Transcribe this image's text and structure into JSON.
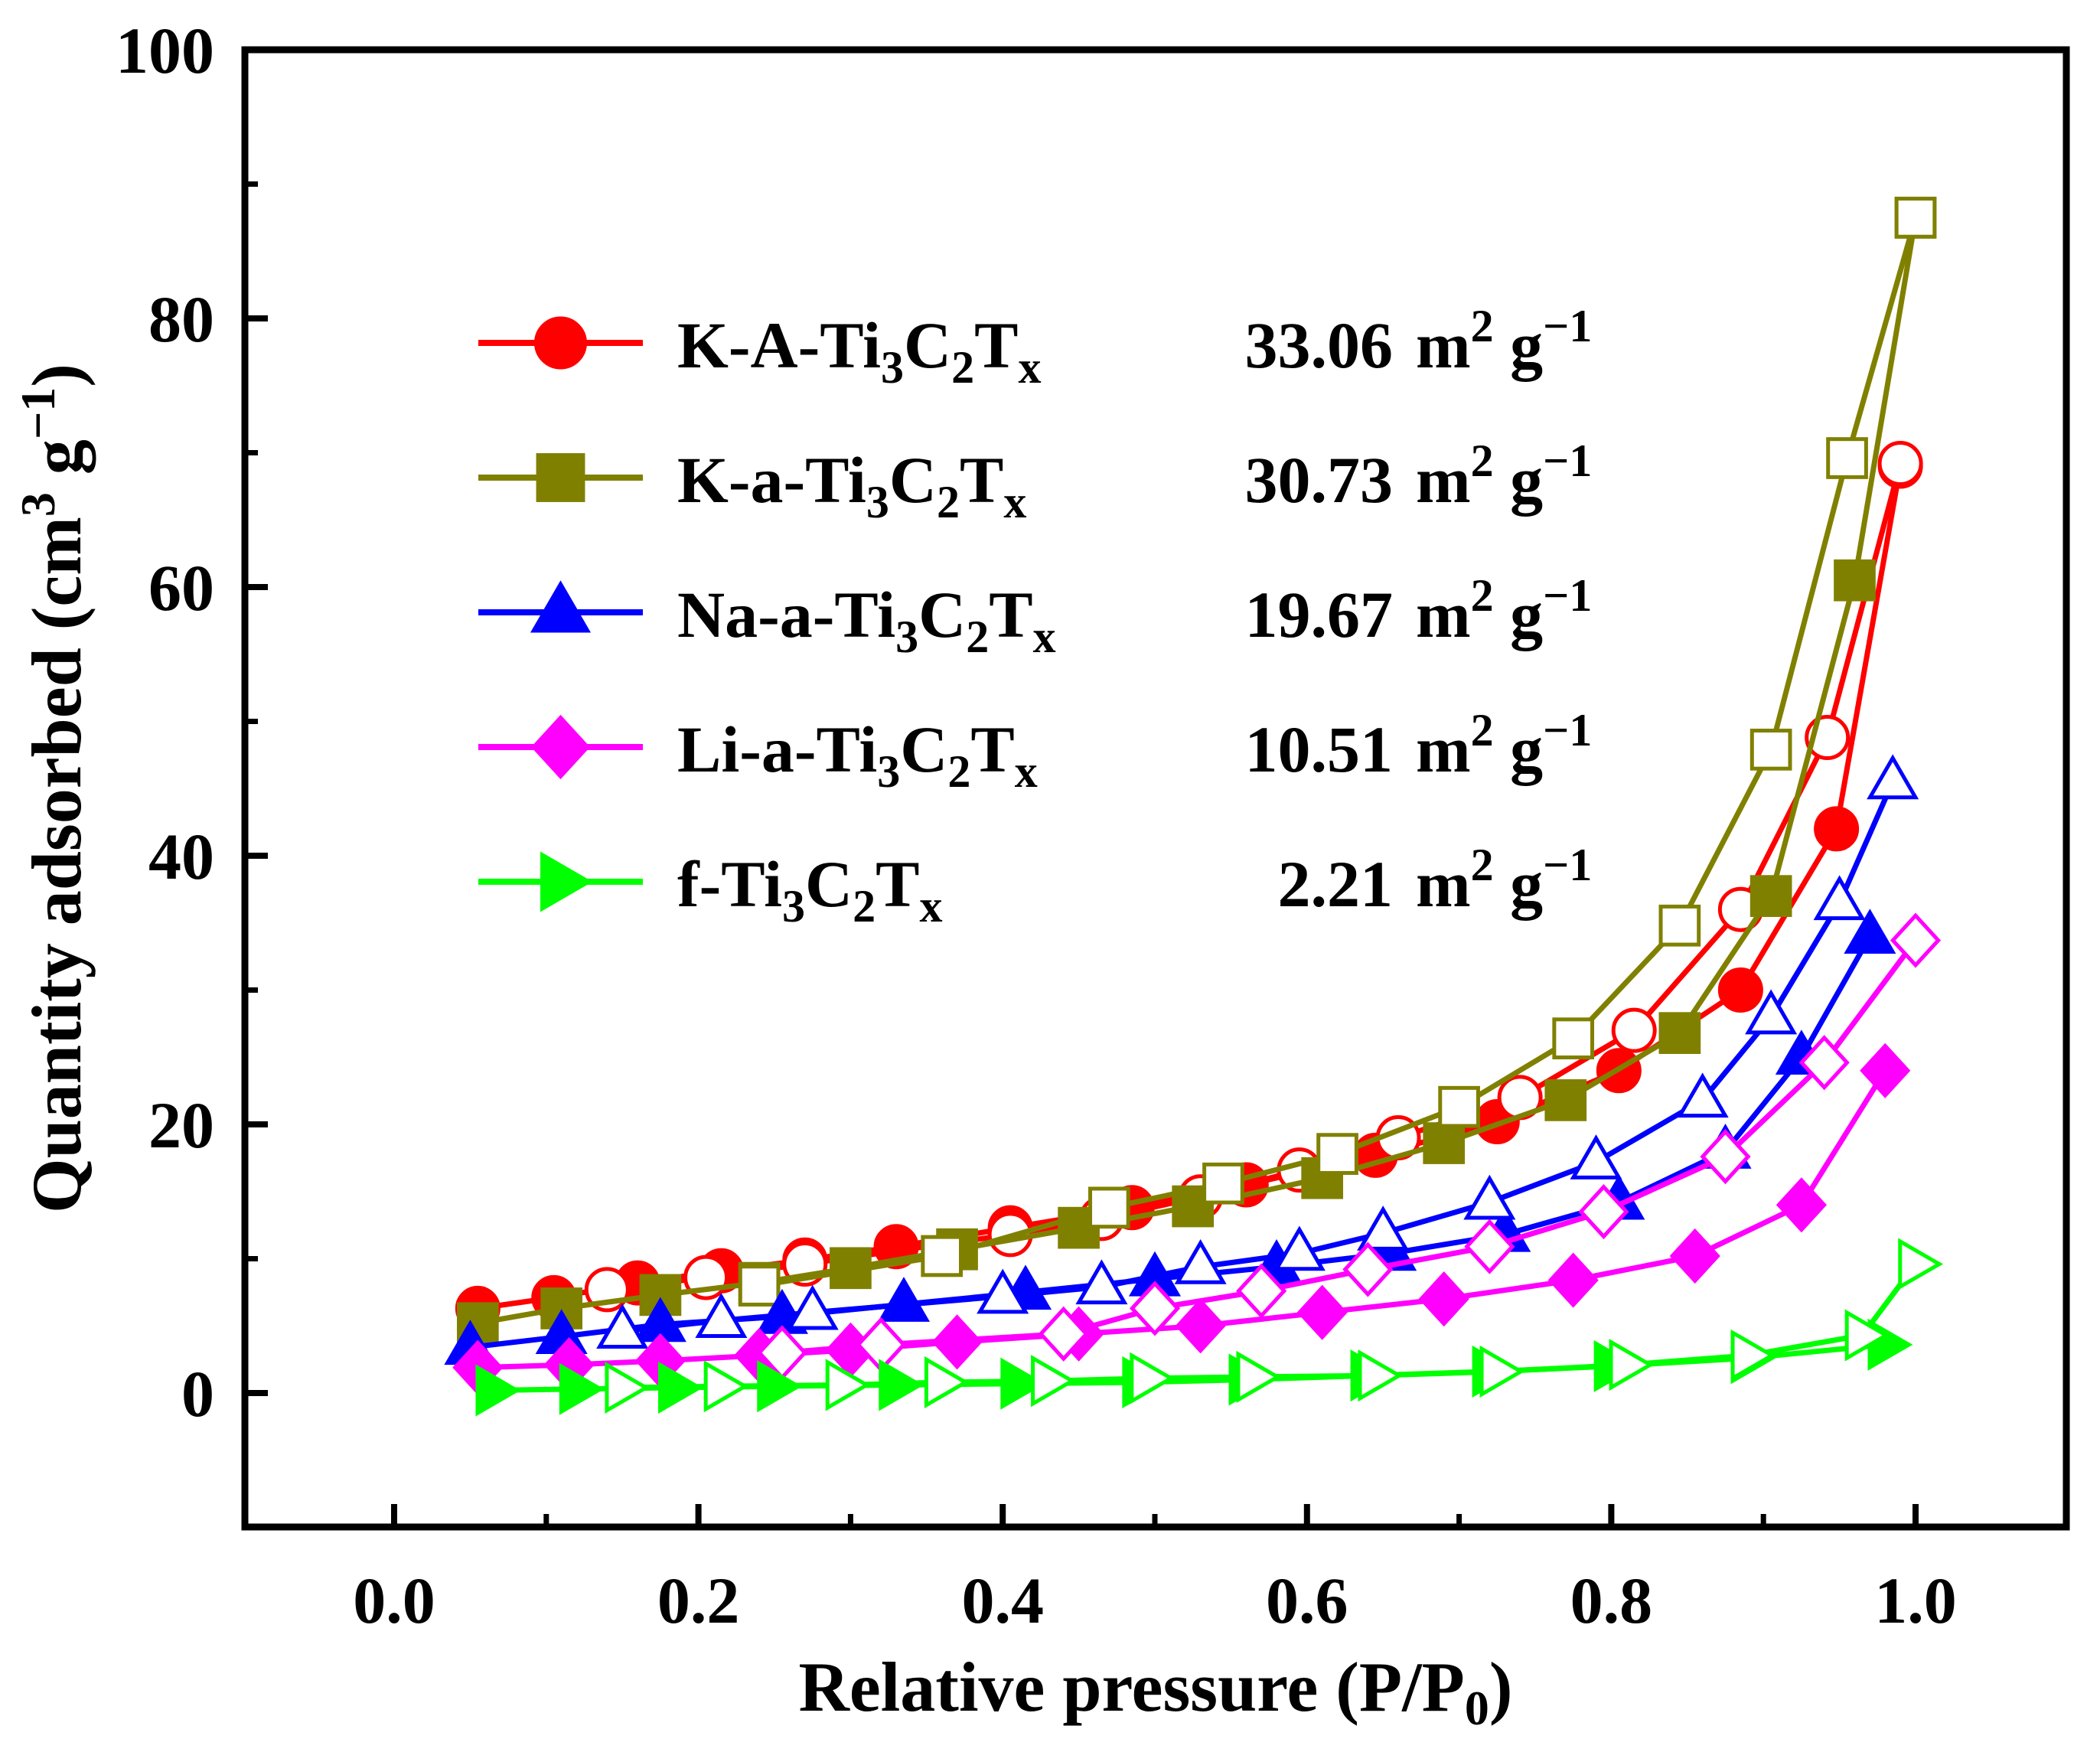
{
  "chart_data": {
    "type": "scatter",
    "xlabel": "Relative pressure (P/P",
    "xlabel_sub": "0",
    "xlabel_end": ")",
    "ylabel": "Quantity adsorbed (cm",
    "ylabel_sup": "3",
    "ylabel_mid": " g",
    "ylabel_sup2": "−1",
    "ylabel_end": ")",
    "xlim": [
      -0.1,
      1.1
    ],
    "ylim": [
      -10,
      100
    ],
    "x_ticks": [
      0.0,
      0.2,
      0.4,
      0.6,
      0.8,
      1.0
    ],
    "x_tick_labels": [
      "0.0",
      "0.2",
      "0.4",
      "0.6",
      "0.8",
      "1.0"
    ],
    "y_ticks": [
      0,
      20,
      40,
      60,
      80,
      100
    ],
    "y_tick_labels": [
      "0",
      "20",
      "40",
      "60",
      "80",
      "100"
    ],
    "legend_position": "upper-left",
    "unit_label": "m",
    "unit_sup": "2",
    "unit_g": " g",
    "unit_sup2": "−1",
    "series": [
      {
        "name_prefix": "K-A-Ti",
        "name_sub1": "3",
        "name_mid": "C",
        "name_sub2": "2",
        "name_mid2": "T",
        "name_sub3": "x",
        "area": "33.06",
        "color": "#ff0000",
        "marker": "circle",
        "adsorption": [
          [
            0.055,
            6.3
          ],
          [
            0.105,
            7.1
          ],
          [
            0.16,
            8.2
          ],
          [
            0.215,
            9.1
          ],
          [
            0.27,
            9.9
          ],
          [
            0.33,
            10.9
          ],
          [
            0.405,
            12.3
          ],
          [
            0.485,
            13.8
          ],
          [
            0.56,
            15.5
          ],
          [
            0.645,
            17.7
          ],
          [
            0.725,
            20.2
          ],
          [
            0.805,
            24.0
          ],
          [
            0.885,
            30.0
          ],
          [
            0.948,
            42.0
          ],
          [
            0.99,
            69.0
          ]
        ],
        "desorption": [
          [
            0.99,
            69.2
          ],
          [
            0.942,
            48.8
          ],
          [
            0.885,
            36.0
          ],
          [
            0.815,
            27.0
          ],
          [
            0.74,
            22.0
          ],
          [
            0.66,
            19.0
          ],
          [
            0.595,
            16.6
          ],
          [
            0.53,
            14.6
          ],
          [
            0.465,
            13.0
          ],
          [
            0.405,
            11.8
          ],
          [
            0.27,
            9.6
          ],
          [
            0.205,
            8.6
          ],
          [
            0.14,
            7.7
          ]
        ]
      },
      {
        "name_prefix": "K-a-Ti",
        "name_sub1": "3",
        "name_mid": "C",
        "name_sub2": "2",
        "name_mid2": "T",
        "name_sub3": "x",
        "area": "30.73",
        "color": "#808000",
        "marker": "square",
        "adsorption": [
          [
            0.055,
            5.2
          ],
          [
            0.11,
            6.3
          ],
          [
            0.175,
            7.3
          ],
          [
            0.24,
            8.2
          ],
          [
            0.3,
            9.3
          ],
          [
            0.37,
            10.7
          ],
          [
            0.45,
            12.3
          ],
          [
            0.525,
            13.9
          ],
          [
            0.61,
            16.0
          ],
          [
            0.69,
            18.6
          ],
          [
            0.77,
            21.8
          ],
          [
            0.845,
            26.8
          ],
          [
            0.905,
            37.0
          ],
          [
            0.96,
            60.5
          ],
          [
            1.0,
            87.5
          ]
        ],
        "desorption": [
          [
            1.0,
            87.5
          ],
          [
            0.955,
            69.6
          ],
          [
            0.905,
            47.9
          ],
          [
            0.845,
            34.8
          ],
          [
            0.775,
            26.4
          ],
          [
            0.7,
            21.3
          ],
          [
            0.62,
            17.8
          ],
          [
            0.545,
            15.6
          ],
          [
            0.47,
            13.8
          ],
          [
            0.36,
            10.2
          ],
          [
            0.24,
            8.0
          ]
        ]
      },
      {
        "name_prefix": "Na-a-Ti",
        "name_sub1": "3",
        "name_mid": "C",
        "name_sub2": "2",
        "name_mid2": "T",
        "name_sub3": "x",
        "area": "19.67",
        "color": "#0000ff",
        "marker": "triangle-up",
        "adsorption": [
          [
            0.05,
            3.4
          ],
          [
            0.11,
            4.2
          ],
          [
            0.175,
            5.1
          ],
          [
            0.255,
            5.7
          ],
          [
            0.335,
            6.6
          ],
          [
            0.415,
            7.5
          ],
          [
            0.5,
            8.5
          ],
          [
            0.58,
            9.4
          ],
          [
            0.655,
            10.4
          ],
          [
            0.73,
            11.8
          ],
          [
            0.805,
            14.2
          ],
          [
            0.875,
            18.0
          ],
          [
            0.925,
            25.0
          ],
          [
            0.97,
            34.0
          ]
        ],
        "desorption": [
          [
            0.985,
            45.5
          ],
          [
            0.95,
            36.5
          ],
          [
            0.905,
            28.0
          ],
          [
            0.86,
            21.8
          ],
          [
            0.79,
            17.2
          ],
          [
            0.72,
            14.2
          ],
          [
            0.65,
            11.9
          ],
          [
            0.595,
            10.4
          ],
          [
            0.53,
            9.4
          ],
          [
            0.465,
            7.9
          ],
          [
            0.4,
            7.2
          ],
          [
            0.275,
            6.0
          ],
          [
            0.215,
            5.4
          ],
          [
            0.15,
            4.6
          ]
        ]
      },
      {
        "name_prefix": "Li-a-Ti",
        "name_sub1": "3",
        "name_mid": "C",
        "name_sub2": "2",
        "name_mid2": "T",
        "name_sub3": "x",
        "area": "10.51",
        "color": "#ff00ff",
        "marker": "diamond",
        "adsorption": [
          [
            0.055,
            1.9
          ],
          [
            0.115,
            2.1
          ],
          [
            0.175,
            2.4
          ],
          [
            0.24,
            2.8
          ],
          [
            0.3,
            3.2
          ],
          [
            0.37,
            3.8
          ],
          [
            0.45,
            4.4
          ],
          [
            0.53,
            5.0
          ],
          [
            0.61,
            6.0
          ],
          [
            0.69,
            7.0
          ],
          [
            0.775,
            8.4
          ],
          [
            0.855,
            10.2
          ],
          [
            0.925,
            14.0
          ],
          [
            0.98,
            24.0
          ]
        ],
        "desorption": [
          [
            1.0,
            33.7
          ],
          [
            0.94,
            24.6
          ],
          [
            0.875,
            17.6
          ],
          [
            0.795,
            13.5
          ],
          [
            0.72,
            10.9
          ],
          [
            0.64,
            9.2
          ],
          [
            0.57,
            7.6
          ],
          [
            0.5,
            6.3
          ],
          [
            0.44,
            4.4
          ],
          [
            0.32,
            3.6
          ],
          [
            0.255,
            3.0
          ]
        ]
      },
      {
        "name_prefix": "f-Ti",
        "name_sub1": "3",
        "name_mid": "C",
        "name_sub2": "2",
        "name_mid2": "T",
        "name_sub3": "x",
        "area": "2.21",
        "color": "#00ff00",
        "marker": "triangle-right",
        "adsorption": [
          [
            0.065,
            0.2
          ],
          [
            0.12,
            0.3
          ],
          [
            0.185,
            0.4
          ],
          [
            0.25,
            0.5
          ],
          [
            0.33,
            0.6
          ],
          [
            0.41,
            0.7
          ],
          [
            0.49,
            0.8
          ],
          [
            0.56,
            1.0
          ],
          [
            0.64,
            1.3
          ],
          [
            0.72,
            1.6
          ],
          [
            0.8,
            2.0
          ],
          [
            0.89,
            2.6
          ],
          [
            0.98,
            3.6
          ]
        ],
        "desorption": [
          [
            1.0,
            9.6
          ],
          [
            0.965,
            4.3
          ],
          [
            0.89,
            2.8
          ],
          [
            0.81,
            2.1
          ],
          [
            0.725,
            1.6
          ],
          [
            0.645,
            1.3
          ],
          [
            0.565,
            1.2
          ],
          [
            0.495,
            1.1
          ],
          [
            0.43,
            0.9
          ],
          [
            0.36,
            0.8
          ],
          [
            0.295,
            0.6
          ],
          [
            0.215,
            0.5
          ],
          [
            0.15,
            0.4
          ]
        ]
      }
    ]
  }
}
